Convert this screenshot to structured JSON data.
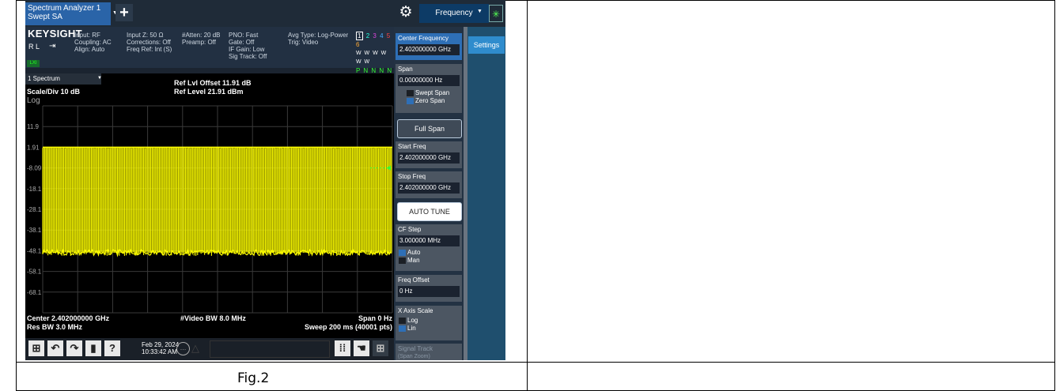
{
  "caption": "Fig.2",
  "topbar": {
    "tab_line1": "Spectrum Analyzer 1",
    "tab_line2": "Swept SA",
    "menu_selected": "Frequency"
  },
  "infobar": {
    "brand": "KEYSIGHT",
    "rl": "R L",
    "lxi": "LXI",
    "col1": "Input: RF\nCoupling: AC\nAlign: Auto",
    "col2": "Input Z: 50 Ω\nCorrections: Off\nFreq Ref: Int (S)",
    "col3": "#Atten: 20 dB\nPreamp: Off",
    "col4": "PNO: Fast\nGate: Off\nIF Gain: Low\nSig Track: Off",
    "col5": "Avg Type: Log-Power\nTrig: Video",
    "trace_numbers": [
      "1",
      "2",
      "3",
      "4",
      "5",
      "6"
    ],
    "trace_types": "W W W W W W",
    "trace_detectors": "P N N N N N"
  },
  "plot": {
    "selector": "1 Spectrum",
    "ref_offset": "Ref Lvl Offset 11.91 dB",
    "ref_level": "Ref Level 21.91 dBm",
    "scale": "Scale/Div 10 dB",
    "log_label": "Log",
    "center": "Center 2.402000000 GHz",
    "res_bw": "Res BW 3.0 MHz",
    "video_bw": "#Video BW 8.0 MHz",
    "span": "Span 0 Hz",
    "sweep": "Sweep 200 ms (40001 pts)"
  },
  "chart_data": {
    "type": "line",
    "title": "",
    "xlabel": "",
    "ylabel": "",
    "y_unit": "dBm",
    "y_tick_labels": [
      "11.9",
      "1.91",
      "-8.09",
      "-18.1",
      "-28.1",
      "-38.1",
      "-48.1",
      "-58.1",
      "-68.1"
    ],
    "ylim": [
      -78.09,
      21.91
    ],
    "x_divisions": 10,
    "trace_high_dbm": 1.91,
    "trace_noise_floor_dbm": -49,
    "trace_color": "#ffff00",
    "grid": true
  },
  "taskbar": {
    "date": "Feb 29, 2024",
    "time": "10:33:42 AM"
  },
  "panel": {
    "center_freq_label": "Center Frequency",
    "center_freq_value": "2.402000000 GHz",
    "span_label": "Span",
    "span_value": "0.00000000 Hz",
    "swept_span": "Swept Span",
    "zero_span": "Zero Span",
    "full_span": "Full Span",
    "start_freq_label": "Start Freq",
    "start_freq_value": "2.402000000 GHz",
    "stop_freq_label": "Stop Freq",
    "stop_freq_value": "2.402000000 GHz",
    "auto_tune": "AUTO TUNE",
    "cf_step_label": "CF Step",
    "cf_step_value": "3.000000 MHz",
    "auto": "Auto",
    "man": "Man",
    "freq_offset_label": "Freq Offset",
    "freq_offset_value": "0 Hz",
    "x_axis_label": "X Axis Scale",
    "log": "Log",
    "lin": "Lin",
    "signal_track": "Signal Track",
    "signal_track_sub": "(Span Zoom)"
  },
  "side": {
    "settings": "Settings"
  },
  "colors": {
    "trace": "#ffff00",
    "accent": "#2f8ccd",
    "background": "#1b2430"
  }
}
